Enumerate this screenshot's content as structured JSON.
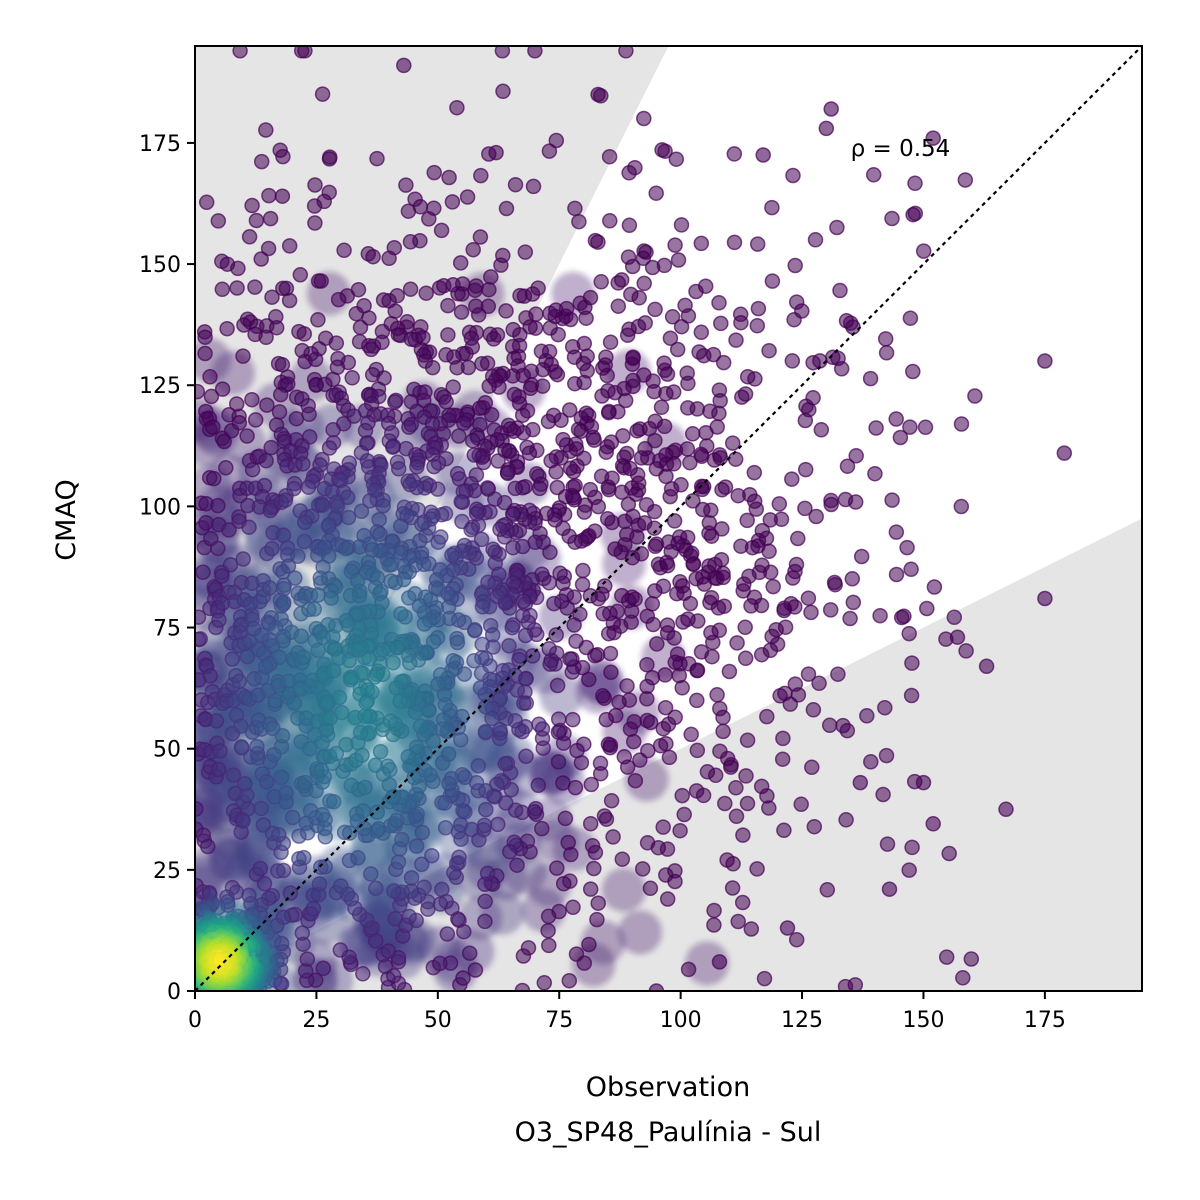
{
  "chart_data": {
    "type": "scatter",
    "xlabel": "Observation",
    "xlabel_line2": "O3_SP48_Paulínia - Sul",
    "ylabel": "CMAQ",
    "xlim": [
      0,
      195
    ],
    "ylim": [
      0,
      195
    ],
    "xticks": [
      0,
      25,
      50,
      75,
      100,
      125,
      150,
      175
    ],
    "yticks": [
      0,
      25,
      50,
      75,
      100,
      125,
      150,
      175
    ],
    "annotation": "ρ = 0.54",
    "annotation_position_data": [
      135,
      174
    ],
    "reference_line": "y = x (dotted, black)",
    "shaded_regions": "outside factor-of-2 band (y > 2x and y < x/2), light grey",
    "colormap": "viridis (point density)",
    "colors": {
      "shade": "#e5e5e5",
      "low_density": "#440154",
      "mid_density": "#2a788e",
      "high_density": "#fde725",
      "reference_line": "#000000"
    },
    "grid": false,
    "legend": "none",
    "point_count_approx": 6000,
    "highlighted_points": [
      {
        "x": 117,
        "y": 172.5
      },
      {
        "x": 43,
        "y": 191
      },
      {
        "x": 70,
        "y": 194
      },
      {
        "x": 83,
        "y": 185
      },
      {
        "x": 179,
        "y": 111
      },
      {
        "x": 175,
        "y": 130
      },
      {
        "x": 175,
        "y": 81
      },
      {
        "x": 167,
        "y": 37.5
      },
      {
        "x": 152,
        "y": 34.5
      },
      {
        "x": 143,
        "y": 21
      },
      {
        "x": 122,
        "y": 13
      },
      {
        "x": 108,
        "y": 6
      },
      {
        "x": 95,
        "y": 0
      },
      {
        "x": 2,
        "y": 136
      },
      {
        "x": 18,
        "y": 164
      },
      {
        "x": 152,
        "y": 176
      },
      {
        "x": 131,
        "y": 182
      },
      {
        "x": 163,
        "y": 67
      },
      {
        "x": 157,
        "y": 73
      },
      {
        "x": 137,
        "y": 43
      },
      {
        "x": 150,
        "y": 43
      },
      {
        "x": 62,
        "y": 173
      },
      {
        "x": 130,
        "y": 178
      }
    ]
  }
}
